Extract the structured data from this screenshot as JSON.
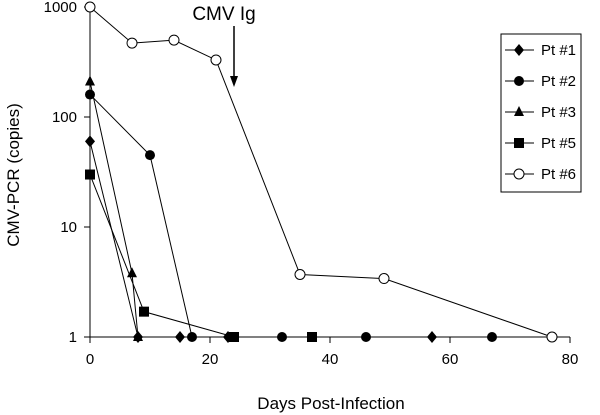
{
  "chart_data": {
    "type": "line",
    "xlabel": "Days Post-Infection",
    "ylabel": "CMV-PCR (copies)",
    "x_scale": "linear",
    "y_scale": "log",
    "xlim": [
      0,
      80
    ],
    "ylim": [
      1,
      1000
    ],
    "x_ticks": [
      "0",
      "20",
      "40",
      "60",
      "80"
    ],
    "y_ticks": [
      "1",
      "10",
      "100",
      "1000"
    ],
    "grid": false,
    "legend_position": "top-right",
    "series": [
      {
        "name": "Pt #1",
        "marker": "diamond-filled",
        "x": [
          0,
          8,
          15,
          23,
          57
        ],
        "y": [
          60,
          1,
          1,
          1,
          1
        ]
      },
      {
        "name": "Pt #2",
        "marker": "circle-filled",
        "x": [
          0,
          10,
          17,
          32,
          46,
          67
        ],
        "y": [
          160,
          45,
          1,
          1,
          1,
          1
        ]
      },
      {
        "name": "Pt #3",
        "marker": "triangle-filled",
        "x": [
          0,
          7,
          8
        ],
        "y": [
          210,
          3.8,
          1
        ]
      },
      {
        "name": "Pt #5",
        "marker": "square-filled",
        "x": [
          0,
          9,
          24,
          37
        ],
        "y": [
          30,
          1.7,
          1,
          1
        ]
      },
      {
        "name": "Pt #6",
        "marker": "circle-open",
        "x": [
          0,
          7,
          14,
          21,
          35,
          49,
          77
        ],
        "y": [
          1000,
          470,
          500,
          330,
          3.7,
          3.4,
          1
        ]
      }
    ],
    "annotations": [
      {
        "text": "CMV Ig",
        "arrow_at_x": 24
      }
    ]
  }
}
